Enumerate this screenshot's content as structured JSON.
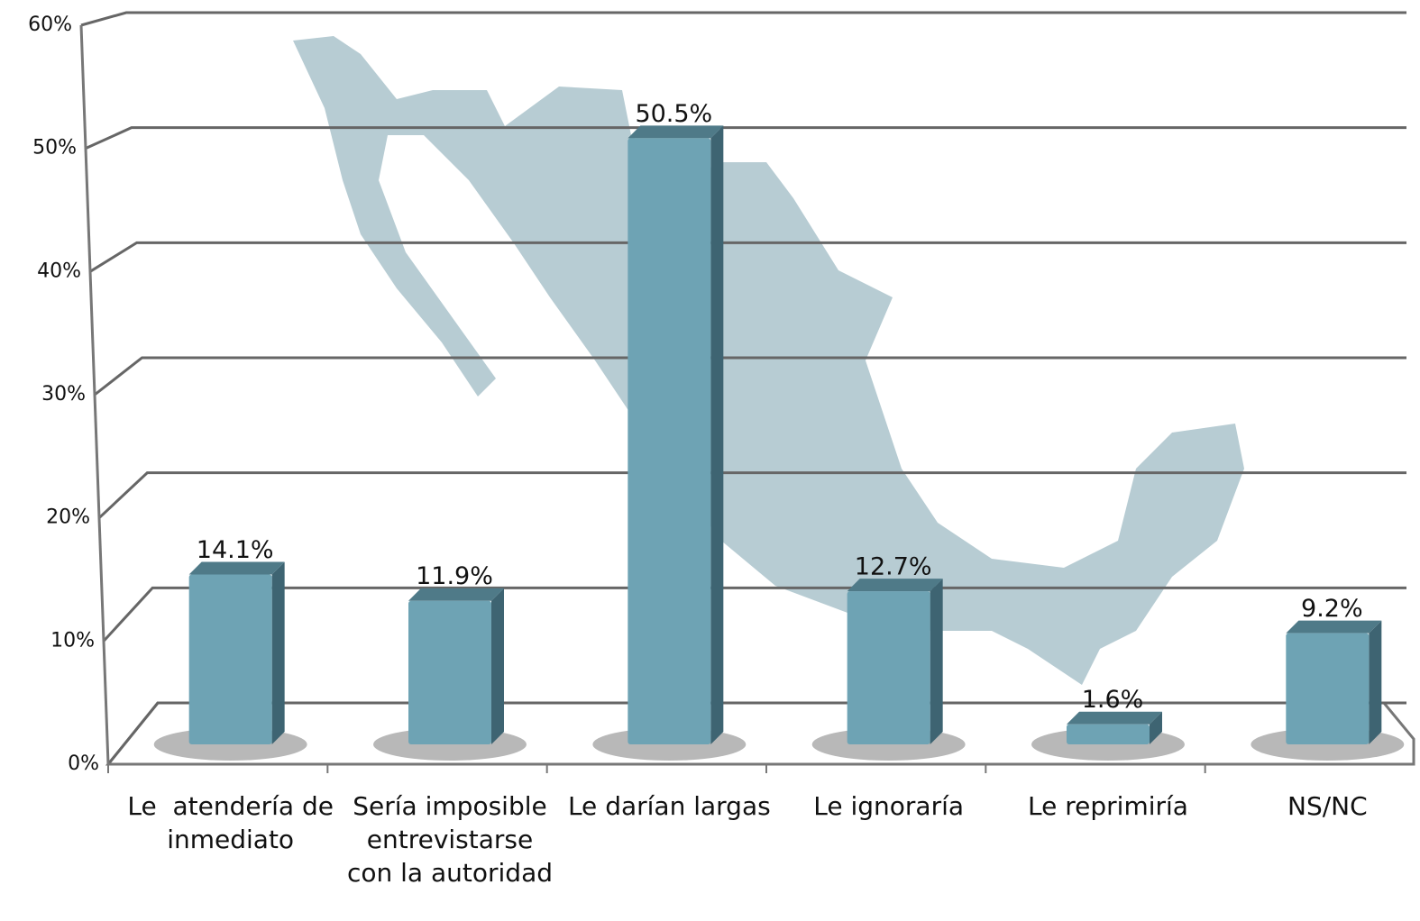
{
  "chart_data": {
    "type": "bar3d",
    "categories": [
      "Le  atendería de inmediato",
      "Sería imposible entrevistarse con la autoridad",
      "Le darían largas",
      "Le ignoraría",
      "Le reprimiría",
      "NS/NC"
    ],
    "values": [
      14.1,
      11.9,
      50.5,
      12.7,
      1.6,
      9.2
    ],
    "value_labels": [
      "14.1%",
      "11.9%",
      "50.5%",
      "12.7%",
      "1.6%",
      "9.2%"
    ],
    "color": "#6ea3b4",
    "ylim": [
      0,
      60
    ],
    "yticks": [
      {
        "value": 0,
        "label": "0%"
      },
      {
        "value": 10,
        "label": "10%"
      },
      {
        "value": 20,
        "label": "20%"
      },
      {
        "value": 30,
        "label": "30%"
      },
      {
        "value": 40,
        "label": "40%"
      },
      {
        "value": 50,
        "label": "50%"
      },
      {
        "value": 60,
        "label": "60%"
      }
    ],
    "grid": true
  }
}
